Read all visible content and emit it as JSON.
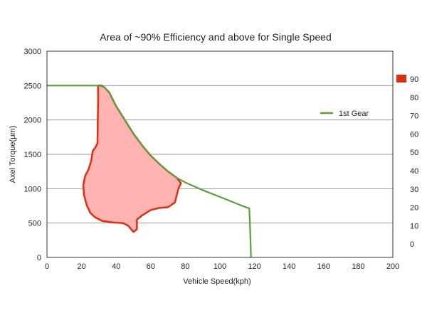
{
  "chart_data": {
    "type": "line",
    "title": "Area of ~90% Efficiency and above for Single Speed",
    "xlabel": "Vehicle Speed(kph)",
    "ylabel": "Axel Torque(μm)",
    "xlim": [
      0,
      200
    ],
    "ylim": [
      0,
      3000
    ],
    "x_ticks": [
      0,
      20,
      40,
      60,
      80,
      100,
      120,
      140,
      160,
      180,
      200
    ],
    "y_ticks": [
      0,
      500,
      1000,
      1500,
      2000,
      2500,
      3000
    ],
    "grid": "horizontal",
    "legend_position": "right",
    "series": [
      {
        "name": "1st Gear",
        "color": "#5a9e3a",
        "points": [
          [
            0,
            2500
          ],
          [
            30,
            2500
          ],
          [
            33,
            2480
          ],
          [
            36,
            2400
          ],
          [
            40,
            2200
          ],
          [
            45,
            2000
          ],
          [
            50,
            1800
          ],
          [
            55,
            1630
          ],
          [
            60,
            1480
          ],
          [
            65,
            1360
          ],
          [
            70,
            1250
          ],
          [
            75,
            1160
          ],
          [
            80,
            1090
          ],
          [
            90,
            980
          ],
          [
            100,
            880
          ],
          [
            110,
            780
          ],
          [
            115,
            730
          ],
          [
            117,
            715
          ],
          [
            117.5,
            400
          ],
          [
            118,
            0
          ]
        ]
      }
    ],
    "efficiency_region": {
      "fill_color": "#ffb3b3",
      "edge_color": "#dd2e10",
      "boundary": [
        [
          29.5,
          2500
        ],
        [
          31.5,
          2500
        ],
        [
          33,
          2480
        ],
        [
          36,
          2400
        ],
        [
          40,
          2200
        ],
        [
          45,
          2000
        ],
        [
          50,
          1800
        ],
        [
          55,
          1630
        ],
        [
          60,
          1480
        ],
        [
          65,
          1360
        ],
        [
          70,
          1250
        ],
        [
          75,
          1160
        ],
        [
          77.5,
          1080
        ],
        [
          76,
          1000
        ],
        [
          74,
          800
        ],
        [
          70,
          730
        ],
        [
          65,
          720
        ],
        [
          60,
          690
        ],
        [
          55,
          610
        ],
        [
          52,
          550
        ],
        [
          52,
          410
        ],
        [
          50,
          370
        ],
        [
          47,
          460
        ],
        [
          44,
          500
        ],
        [
          38,
          510
        ],
        [
          32,
          530
        ],
        [
          28,
          580
        ],
        [
          25,
          650
        ],
        [
          23,
          760
        ],
        [
          21.5,
          900
        ],
        [
          21,
          1050
        ],
        [
          22,
          1180
        ],
        [
          24,
          1280
        ],
        [
          25.5,
          1400
        ],
        [
          26.5,
          1550
        ],
        [
          28,
          1600
        ],
        [
          29.2,
          1660
        ],
        [
          29.4,
          2000
        ],
        [
          29.6,
          2300
        ],
        [
          29.5,
          2500
        ]
      ]
    },
    "color_scale": {
      "labels": [
        0,
        10,
        20,
        30,
        40,
        50,
        60,
        70,
        80,
        90
      ],
      "highlight_label": 90,
      "highlight_color": "#dd2e10"
    }
  }
}
